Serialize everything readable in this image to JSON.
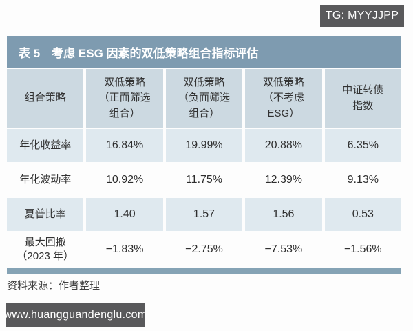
{
  "badges": {
    "tg": "TG: MYYJJPP",
    "site": "www.huangguandenglu.com"
  },
  "table": {
    "title": "表 5　考虑 ESG 因素的双低策略组合指标评估",
    "columns": [
      "组合策略",
      "双低策略\n（正面筛选\n组合）",
      "双低策略\n（负面筛选\n组合）",
      "双低策略\n（不考虑\nESG）",
      "中证转债\n指数"
    ],
    "rows": [
      {
        "label": "年化收益率",
        "values": [
          "16.84%",
          "19.99%",
          "20.88%",
          "6.35%"
        ]
      },
      {
        "label": "年化波动率",
        "values": [
          "10.92%",
          "11.75%",
          "12.39%",
          "9.13%"
        ]
      },
      {
        "label": "夏普比率",
        "values": [
          "1.40",
          "1.57",
          "1.56",
          "0.53"
        ]
      },
      {
        "label": "最大回撤\n（2023 年）",
        "values": [
          "−1.83%",
          "−2.75%",
          "−7.53%",
          "−1.56%"
        ]
      }
    ]
  },
  "source_note": "资料来源：作者整理",
  "colors": {
    "title_bar": "#7e9bb0",
    "header_row_bg": "#ccd9e1",
    "alt_row_bg": "#dfe9ef",
    "white_row_bg": "#fdfdfd",
    "bottom_bar": "#85a3b5",
    "badge_bg": "#59595b",
    "text": "#333333"
  }
}
